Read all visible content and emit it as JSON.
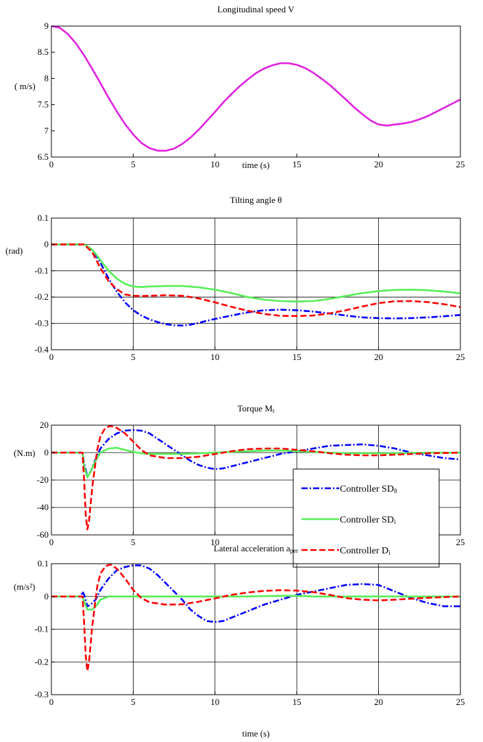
{
  "chart_data": [
    {
      "type": "line",
      "title": "Longitudinal speed V",
      "title_sub": "",
      "xlabel": "time (s)",
      "ylabel": "( m/s)",
      "xlim": [
        0,
        25
      ],
      "ylim": [
        6.5,
        9
      ],
      "xticks": [
        0,
        5,
        10,
        15,
        20,
        25
      ],
      "xtick_labels": [
        "0",
        "5",
        "10",
        "15",
        "20",
        "25"
      ],
      "yticks": [
        6.5,
        7,
        7.5,
        8,
        8.5,
        9
      ],
      "ytick_labels": [
        "6.5",
        "7",
        "7.5",
        "8",
        "8.5",
        "9"
      ],
      "grid": false,
      "series": [
        {
          "name": "",
          "color": "#e020e0",
          "dash": "solid",
          "x": [
            0,
            0.5,
            1,
            1.5,
            2,
            2.5,
            3,
            3.5,
            4,
            4.5,
            5,
            5.5,
            6,
            6.5,
            7,
            7.5,
            8,
            8.5,
            9,
            9.5,
            10,
            10.5,
            11,
            11.5,
            12,
            12.5,
            13,
            13.5,
            14,
            14.5,
            15,
            15.5,
            16,
            16.5,
            17,
            17.5,
            18,
            18.5,
            19,
            19.5,
            20,
            20.5,
            21,
            21.5,
            22,
            22.5,
            23,
            23.5,
            24,
            24.5,
            25
          ],
          "y": [
            9.0,
            8.97,
            8.85,
            8.67,
            8.44,
            8.18,
            7.91,
            7.63,
            7.37,
            7.13,
            6.93,
            6.77,
            6.67,
            6.62,
            6.62,
            6.66,
            6.75,
            6.87,
            7.02,
            7.19,
            7.36,
            7.54,
            7.7,
            7.85,
            7.98,
            8.1,
            8.19,
            8.25,
            8.29,
            8.29,
            8.26,
            8.2,
            8.11,
            8.0,
            7.88,
            7.74,
            7.6,
            7.45,
            7.32,
            7.2,
            7.12,
            7.1,
            7.12,
            7.14,
            7.17,
            7.22,
            7.28,
            7.36,
            7.44,
            7.52,
            7.6
          ]
        }
      ]
    },
    {
      "type": "line",
      "title": "Tilting angle θ",
      "title_sub": "",
      "xlabel": "",
      "ylabel": "(rad)",
      "xlim": [
        0,
        25
      ],
      "ylim": [
        -0.4,
        0.1
      ],
      "xticks": [
        0,
        5,
        10,
        15,
        20,
        25
      ],
      "xtick_labels": [
        "0",
        "5",
        "10",
        "15",
        "20",
        "25"
      ],
      "yticks": [
        -0.4,
        -0.3,
        -0.2,
        -0.1,
        0,
        0.1
      ],
      "ytick_labels": [
        "-0.4",
        "-0.3",
        "-0.2",
        "-0.1",
        "0",
        "0.1"
      ],
      "grid": true,
      "series": [
        {
          "name": "Controller SD8",
          "color": "#0000ff",
          "dash": "dashdot",
          "x": [
            0,
            2,
            2.5,
            3,
            3.5,
            4,
            4.5,
            5,
            5.5,
            6,
            6.5,
            7,
            7.5,
            8,
            8.5,
            9,
            9.5,
            10,
            11,
            12,
            13,
            14,
            15,
            16,
            17,
            18,
            19,
            20,
            21,
            22,
            23,
            24,
            25
          ],
          "y": [
            0,
            0,
            -0.02,
            -0.07,
            -0.13,
            -0.18,
            -0.22,
            -0.25,
            -0.27,
            -0.285,
            -0.295,
            -0.303,
            -0.307,
            -0.308,
            -0.305,
            -0.298,
            -0.29,
            -0.283,
            -0.27,
            -0.258,
            -0.25,
            -0.248,
            -0.25,
            -0.255,
            -0.262,
            -0.27,
            -0.277,
            -0.28,
            -0.281,
            -0.28,
            -0.277,
            -0.273,
            -0.268
          ]
        },
        {
          "name": "Controller SDi",
          "color": "#55ee55",
          "dash": "solid",
          "x": [
            0,
            2,
            2.5,
            3,
            3.5,
            4,
            4.5,
            5,
            5.5,
            6,
            7,
            8,
            9,
            10,
            11,
            12,
            13,
            14,
            15,
            16,
            17,
            18,
            19,
            20,
            21,
            22,
            23,
            24,
            25
          ],
          "y": [
            0,
            0,
            -0.02,
            -0.06,
            -0.1,
            -0.13,
            -0.15,
            -0.16,
            -0.162,
            -0.16,
            -0.158,
            -0.158,
            -0.163,
            -0.172,
            -0.185,
            -0.2,
            -0.21,
            -0.215,
            -0.217,
            -0.215,
            -0.207,
            -0.196,
            -0.185,
            -0.177,
            -0.173,
            -0.172,
            -0.174,
            -0.179,
            -0.186
          ]
        },
        {
          "name": "Controller Di",
          "color": "#ff0000",
          "dash": "dashed",
          "x": [
            0,
            2,
            2.5,
            3,
            3.5,
            4,
            4.5,
            5,
            5.5,
            6,
            7,
            8,
            9,
            10,
            11,
            12,
            13,
            14,
            15,
            16,
            17,
            18,
            19,
            20,
            21,
            22,
            23,
            24,
            25
          ],
          "y": [
            0,
            0,
            -0.03,
            -0.09,
            -0.14,
            -0.17,
            -0.19,
            -0.195,
            -0.196,
            -0.195,
            -0.193,
            -0.195,
            -0.205,
            -0.22,
            -0.237,
            -0.252,
            -0.264,
            -0.271,
            -0.272,
            -0.27,
            -0.262,
            -0.25,
            -0.236,
            -0.223,
            -0.216,
            -0.215,
            -0.219,
            -0.227,
            -0.238
          ]
        }
      ]
    },
    {
      "type": "line",
      "title": "Torque M",
      "title_sub": "t",
      "xlabel": "",
      "ylabel": "(N.m)",
      "xlim": [
        0,
        25
      ],
      "ylim": [
        -60,
        20
      ],
      "xticks": [
        0,
        5,
        10,
        15,
        20,
        25
      ],
      "xtick_labels": [
        "0",
        "5",
        "10",
        "15",
        "20",
        "25"
      ],
      "yticks": [
        -60,
        -40,
        -20,
        0,
        20
      ],
      "ytick_labels": [
        "-60",
        "-40",
        "-20",
        "0",
        "20"
      ],
      "grid": true,
      "legend_placement": "lower-right",
      "series": [
        {
          "name": "Controller SD8",
          "color": "#0000ff",
          "dash": "dashdot",
          "x": [
            0,
            1.9,
            2.0,
            2.2,
            2.4,
            2.7,
            3.0,
            3.5,
            4.0,
            4.5,
            5.0,
            5.5,
            6.0,
            6.5,
            7.0,
            7.5,
            8.0,
            8.5,
            9.0,
            9.5,
            10.0,
            10.5,
            11,
            12,
            13,
            14,
            15,
            16,
            17,
            18,
            19,
            20,
            21,
            22,
            23,
            24,
            25
          ],
          "y": [
            0,
            0,
            -8,
            -17,
            -14,
            -5,
            3,
            10,
            14,
            16,
            16.5,
            16,
            14,
            10,
            6,
            2,
            -2,
            -6,
            -9,
            -11,
            -12,
            -11.5,
            -10,
            -7,
            -4,
            -1,
            1,
            3,
            5,
            5.5,
            6,
            5,
            3,
            0,
            -2,
            -4,
            -5
          ]
        },
        {
          "name": "Controller SDi",
          "color": "#55ee55",
          "dash": "solid",
          "x": [
            0,
            1.9,
            2.0,
            2.2,
            2.4,
            2.7,
            3.0,
            3.5,
            4.0,
            4.5,
            5.0,
            5.5,
            6.0,
            7,
            8,
            9,
            10,
            11,
            12,
            13,
            14,
            15,
            16,
            17,
            18,
            19,
            20,
            21,
            22,
            23,
            24,
            25
          ],
          "y": [
            0,
            0,
            -10,
            -18,
            -14,
            -6,
            0,
            3,
            3.5,
            2,
            0.5,
            -0.5,
            -1,
            -1,
            -1,
            -0.5,
            0,
            0.5,
            1,
            1.5,
            1.5,
            1,
            0.5,
            0,
            -0.5,
            -0.5,
            -0.5,
            -0.5,
            -0.3,
            0,
            0,
            0
          ]
        },
        {
          "name": "Controller Di",
          "color": "#ff0000",
          "dash": "dashed",
          "x": [
            0,
            1.9,
            2.0,
            2.1,
            2.2,
            2.3,
            2.5,
            2.8,
            3.0,
            3.3,
            3.6,
            4.0,
            4.5,
            5.0,
            5.5,
            6.0,
            7,
            8,
            9,
            10,
            11,
            12,
            13,
            14,
            15,
            16,
            17,
            18,
            19,
            20,
            21,
            22,
            23,
            24,
            25
          ],
          "y": [
            0,
            0,
            -20,
            -45,
            -56,
            -50,
            -25,
            2,
            12,
            18,
            19.5,
            18,
            14,
            8,
            2,
            -2,
            -4,
            -4,
            -3,
            -1,
            1,
            2.5,
            3,
            3,
            2,
            1,
            -0.5,
            -1.5,
            -2,
            -2,
            -1.5,
            -1,
            -0.5,
            -0.3,
            0
          ]
        }
      ],
      "legend": [
        {
          "label": "Controller SD",
          "sub": "8",
          "color": "#0000ff",
          "dash": "dashdot"
        },
        {
          "label": "Controller SD",
          "sub": "i",
          "color": "#55ee55",
          "dash": "solid"
        },
        {
          "label": "Controller D",
          "sub": "i",
          "color": "#ff0000",
          "dash": "dashed"
        }
      ]
    },
    {
      "type": "line",
      "title": "Lateral acceleration a",
      "title_sub": "per",
      "xlabel": "time (s)",
      "ylabel": "(m/s²)",
      "xlim": [
        0,
        25
      ],
      "ylim": [
        -0.3,
        0.1
      ],
      "xticks": [
        0,
        5,
        10,
        15,
        20,
        25
      ],
      "xtick_labels": [
        "0",
        "5",
        "10",
        "15",
        "20",
        "25"
      ],
      "yticks": [
        -0.3,
        -0.2,
        -0.1,
        0,
        0.1
      ],
      "ytick_labels": [
        "-0.3",
        "-0.2",
        "-0.1",
        "0",
        "0.1"
      ],
      "grid": true,
      "series": [
        {
          "name": "Controller SD8",
          "color": "#0000ff",
          "dash": "dashdot",
          "x": [
            0,
            1.8,
            1.9,
            2.0,
            2.2,
            2.4,
            2.7,
            3.0,
            3.5,
            4.0,
            4.5,
            5.0,
            5.5,
            6.0,
            6.5,
            7.0,
            7.5,
            8.0,
            8.5,
            9.0,
            9.5,
            10.0,
            10.5,
            11,
            12,
            13,
            14,
            15,
            16,
            17,
            18,
            19,
            20,
            21,
            22,
            23,
            24,
            25
          ],
          "y": [
            0,
            0,
            0.015,
            0.005,
            -0.03,
            -0.025,
            -0.01,
            0.02,
            0.055,
            0.08,
            0.09,
            0.095,
            0.095,
            0.085,
            0.065,
            0.04,
            0.015,
            -0.01,
            -0.04,
            -0.06,
            -0.075,
            -0.078,
            -0.075,
            -0.065,
            -0.045,
            -0.025,
            -0.01,
            0.005,
            0.015,
            0.025,
            0.035,
            0.038,
            0.035,
            0.015,
            -0.005,
            -0.02,
            -0.03,
            -0.03
          ]
        },
        {
          "name": "Controller SDi",
          "color": "#55ee55",
          "dash": "solid",
          "x": [
            0,
            1.9,
            2.0,
            2.2,
            2.5,
            2.8,
            3.0,
            3.5,
            4.0,
            4.5,
            5.0,
            6,
            8,
            10,
            12,
            14,
            15,
            16,
            18,
            20,
            22,
            25
          ],
          "y": [
            0,
            0,
            -0.015,
            -0.04,
            -0.04,
            -0.025,
            -0.01,
            0,
            0,
            0,
            0,
            0,
            0,
            0,
            0,
            0.002,
            0.002,
            0,
            0,
            0,
            0,
            0
          ]
        },
        {
          "name": "Controller Di",
          "color": "#ff0000",
          "dash": "dashed",
          "x": [
            0,
            1.9,
            2.0,
            2.1,
            2.2,
            2.3,
            2.5,
            2.8,
            3.0,
            3.3,
            3.6,
            4.0,
            4.5,
            5.0,
            5.5,
            6.0,
            7,
            8,
            9,
            10,
            11,
            12,
            13,
            14,
            15,
            16,
            17,
            18,
            19,
            20,
            21,
            22,
            23,
            24,
            25
          ],
          "y": [
            0,
            0,
            -0.08,
            -0.18,
            -0.228,
            -0.2,
            -0.09,
            0.03,
            0.07,
            0.092,
            0.098,
            0.085,
            0.055,
            0.02,
            -0.005,
            -0.018,
            -0.025,
            -0.024,
            -0.016,
            -0.006,
            0.005,
            0.012,
            0.017,
            0.019,
            0.018,
            0.013,
            0.005,
            -0.005,
            -0.01,
            -0.012,
            -0.01,
            -0.007,
            -0.004,
            -0.002,
            0
          ]
        }
      ]
    }
  ]
}
